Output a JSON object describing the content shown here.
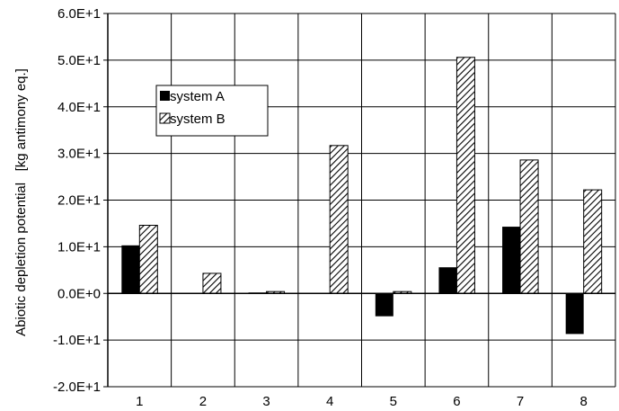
{
  "chart_data": {
    "type": "bar",
    "categories": [
      "1",
      "2",
      "3",
      "4",
      "5",
      "6",
      "7",
      "8"
    ],
    "series": [
      {
        "name": "system A",
        "values": [
          10.3,
          0,
          0.2,
          0,
          -4.9,
          5.6,
          14.3,
          -8.7
        ],
        "color": "#000000",
        "pattern": "solid"
      },
      {
        "name": "system B",
        "values": [
          14.6,
          4.3,
          0.4,
          31.7,
          0.4,
          50.6,
          28.6,
          22.2
        ],
        "color": "#ffffff",
        "pattern": "diagonal-hatch"
      }
    ],
    "ylabel": "Abiotic depletion potential   [kg antimony eq.]",
    "xlabel": "",
    "ylim": [
      -20,
      60
    ],
    "yticks": [
      -20,
      -10,
      0,
      10,
      20,
      30,
      40,
      50,
      60
    ],
    "ytick_labels": [
      "-2.0E+1",
      "-1.0E+1",
      "0.0E+0",
      "1.0E+1",
      "2.0E+1",
      "3.0E+1",
      "4.0E+1",
      "5.0E+1",
      "6.0E+1"
    ],
    "grid": true,
    "legend_position": "upper-left"
  }
}
